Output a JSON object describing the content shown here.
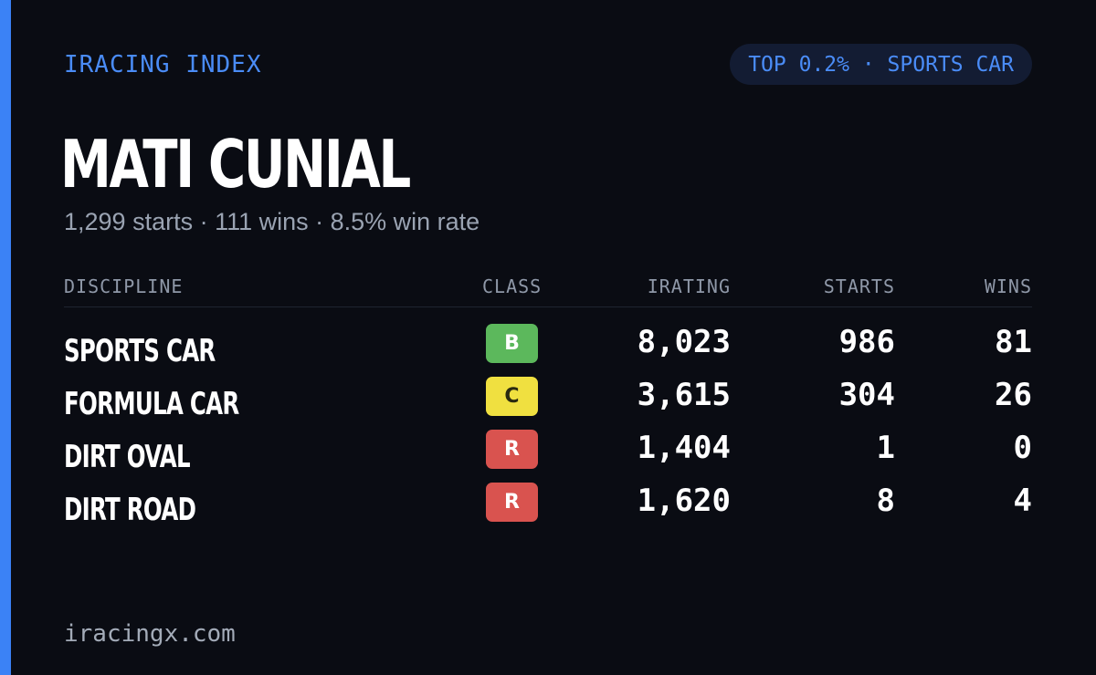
{
  "brand": "IRACING INDEX",
  "rank_badge": "TOP 0.2% · SPORTS CAR",
  "driver_name": "MATI CUNIAL",
  "summary": "1,299 starts · 111 wins · 8.5% win rate",
  "table": {
    "headers": {
      "discipline": "DISCIPLINE",
      "class": "CLASS",
      "irating": "IRATING",
      "starts": "STARTS",
      "wins": "WINS"
    },
    "rows": [
      {
        "discipline": "SPORTS CAR",
        "class": "B",
        "class_color": "#5cb85c",
        "class_text_color": "#ffffff",
        "irating": "8,023",
        "starts": "986",
        "wins": "81"
      },
      {
        "discipline": "FORMULA CAR",
        "class": "C",
        "class_color": "#f0e040",
        "class_text_color": "#2a2a10",
        "irating": "3,615",
        "starts": "304",
        "wins": "26"
      },
      {
        "discipline": "DIRT OVAL",
        "class": "R",
        "class_color": "#d9534f",
        "class_text_color": "#ffffff",
        "irating": "1,404",
        "starts": "1",
        "wins": "0"
      },
      {
        "discipline": "DIRT ROAD",
        "class": "R",
        "class_color": "#d9534f",
        "class_text_color": "#ffffff",
        "irating": "1,620",
        "starts": "8",
        "wins": "4"
      }
    ]
  },
  "footer": "iracingx.com",
  "colors": {
    "accent": "#3b82f6",
    "background": "#0a0c13"
  }
}
